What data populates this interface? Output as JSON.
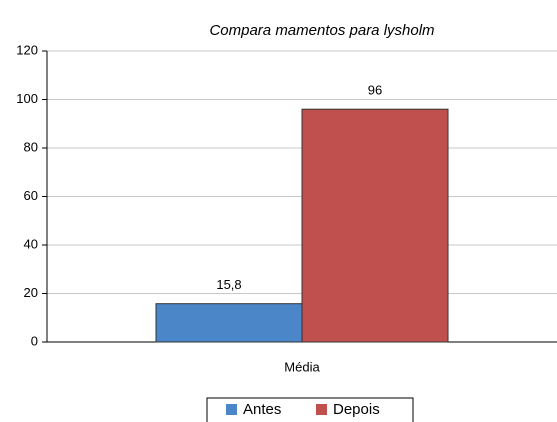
{
  "chart_data": {
    "type": "bar",
    "title": "Compara mamentos para lysholm",
    "categories": [
      "Média"
    ],
    "series": [
      {
        "name": "Antes",
        "color": "#4a86c8",
        "values": [
          15.8
        ],
        "value_labels": [
          "15,8"
        ]
      },
      {
        "name": "Depois",
        "color": "#c0504d",
        "values": [
          96
        ]
      }
    ],
    "ylim": [
      0,
      120
    ],
    "yticks": [
      0,
      20,
      40,
      60,
      80,
      100,
      120
    ],
    "grid": true,
    "legend": "bottom"
  }
}
